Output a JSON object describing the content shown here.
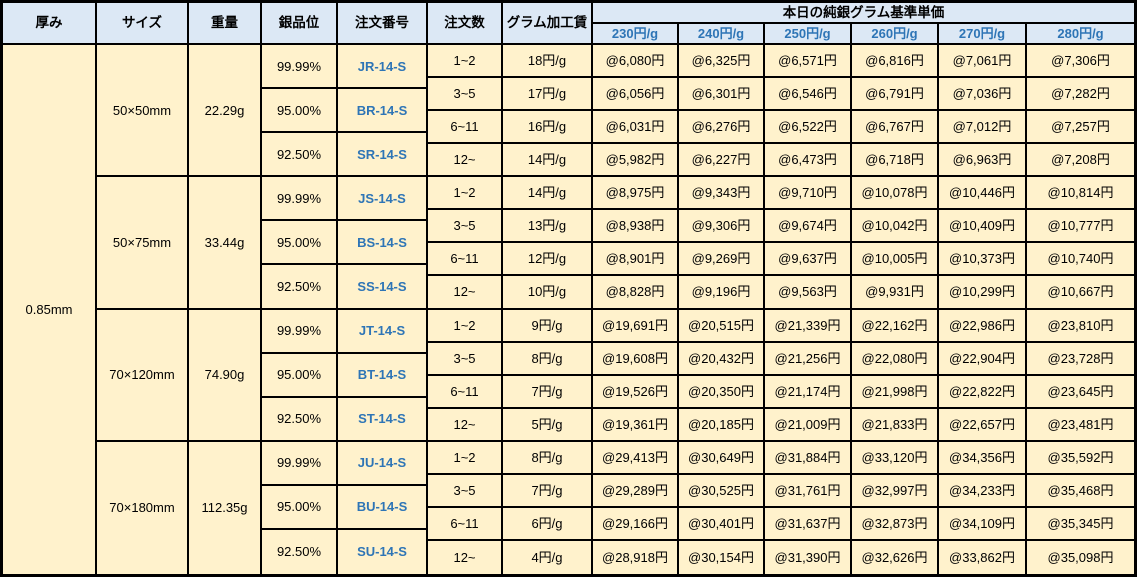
{
  "table": {
    "column_headers": {
      "thickness": "厚み",
      "size": "サイズ",
      "weight": "重量",
      "purity": "銀品位",
      "order_no": "注文番号",
      "qty": "注文数",
      "fee": "グラム加工賃"
    },
    "price_group_header": "本日の純銀グラム基準単価",
    "price_columns": [
      "230円/g",
      "240円/g",
      "250円/g",
      "260円/g",
      "270円/g",
      "280円/g"
    ],
    "thickness": "0.85mm",
    "sections": [
      {
        "size": "50×50mm",
        "weight": "22.29g",
        "purities": [
          {
            "purity": "99.99%",
            "order_no": "JR-14-S"
          },
          {
            "purity": "95.00%",
            "order_no": "BR-14-S"
          },
          {
            "purity": "92.50%",
            "order_no": "SR-14-S"
          }
        ],
        "rows": [
          {
            "qty": "1~2",
            "fee": "18円/g",
            "prices": [
              "@6,080円",
              "@6,325円",
              "@6,571円",
              "@6,816円",
              "@7,061円",
              "@7,306円"
            ]
          },
          {
            "qty": "3~5",
            "fee": "17円/g",
            "prices": [
              "@6,056円",
              "@6,301円",
              "@6,546円",
              "@6,791円",
              "@7,036円",
              "@7,282円"
            ]
          },
          {
            "qty": "6~11",
            "fee": "16円/g",
            "prices": [
              "@6,031円",
              "@6,276円",
              "@6,522円",
              "@6,767円",
              "@7,012円",
              "@7,257円"
            ]
          },
          {
            "qty": "12~",
            "fee": "14円/g",
            "prices": [
              "@5,982円",
              "@6,227円",
              "@6,473円",
              "@6,718円",
              "@6,963円",
              "@7,208円"
            ]
          }
        ]
      },
      {
        "size": "50×75mm",
        "weight": "33.44g",
        "purities": [
          {
            "purity": "99.99%",
            "order_no": "JS-14-S"
          },
          {
            "purity": "95.00%",
            "order_no": "BS-14-S"
          },
          {
            "purity": "92.50%",
            "order_no": "SS-14-S"
          }
        ],
        "rows": [
          {
            "qty": "1~2",
            "fee": "14円/g",
            "prices": [
              "@8,975円",
              "@9,343円",
              "@9,710円",
              "@10,078円",
              "@10,446円",
              "@10,814円"
            ]
          },
          {
            "qty": "3~5",
            "fee": "13円/g",
            "prices": [
              "@8,938円",
              "@9,306円",
              "@9,674円",
              "@10,042円",
              "@10,409円",
              "@10,777円"
            ]
          },
          {
            "qty": "6~11",
            "fee": "12円/g",
            "prices": [
              "@8,901円",
              "@9,269円",
              "@9,637円",
              "@10,005円",
              "@10,373円",
              "@10,740円"
            ]
          },
          {
            "qty": "12~",
            "fee": "10円/g",
            "prices": [
              "@8,828円",
              "@9,196円",
              "@9,563円",
              "@9,931円",
              "@10,299円",
              "@10,667円"
            ]
          }
        ]
      },
      {
        "size": "70×120mm",
        "weight": "74.90g",
        "purities": [
          {
            "purity": "99.99%",
            "order_no": "JT-14-S"
          },
          {
            "purity": "95.00%",
            "order_no": "BT-14-S"
          },
          {
            "purity": "92.50%",
            "order_no": "ST-14-S"
          }
        ],
        "rows": [
          {
            "qty": "1~2",
            "fee": "9円/g",
            "prices": [
              "@19,691円",
              "@20,515円",
              "@21,339円",
              "@22,162円",
              "@22,986円",
              "@23,810円"
            ]
          },
          {
            "qty": "3~5",
            "fee": "8円/g",
            "prices": [
              "@19,608円",
              "@20,432円",
              "@21,256円",
              "@22,080円",
              "@22,904円",
              "@23,728円"
            ]
          },
          {
            "qty": "6~11",
            "fee": "7円/g",
            "prices": [
              "@19,526円",
              "@20,350円",
              "@21,174円",
              "@21,998円",
              "@22,822円",
              "@23,645円"
            ]
          },
          {
            "qty": "12~",
            "fee": "5円/g",
            "prices": [
              "@19,361円",
              "@20,185円",
              "@21,009円",
              "@21,833円",
              "@22,657円",
              "@23,481円"
            ]
          }
        ]
      },
      {
        "size": "70×180mm",
        "weight": "112.35g",
        "purities": [
          {
            "purity": "99.99%",
            "order_no": "JU-14-S"
          },
          {
            "purity": "95.00%",
            "order_no": "BU-14-S"
          },
          {
            "purity": "92.50%",
            "order_no": "SU-14-S"
          }
        ],
        "rows": [
          {
            "qty": "1~2",
            "fee": "8円/g",
            "prices": [
              "@29,413円",
              "@30,649円",
              "@31,884円",
              "@33,120円",
              "@34,356円",
              "@35,592円"
            ]
          },
          {
            "qty": "3~5",
            "fee": "7円/g",
            "prices": [
              "@29,289円",
              "@30,525円",
              "@31,761円",
              "@32,997円",
              "@34,233円",
              "@35,468円"
            ]
          },
          {
            "qty": "6~11",
            "fee": "6円/g",
            "prices": [
              "@29,166円",
              "@30,401円",
              "@31,637円",
              "@32,873円",
              "@34,109円",
              "@35,345円"
            ]
          },
          {
            "qty": "12~",
            "fee": "4円/g",
            "prices": [
              "@28,918円",
              "@30,154円",
              "@31,390円",
              "@32,626円",
              "@33,862円",
              "@35,098円"
            ]
          }
        ]
      }
    ]
  },
  "colors": {
    "header_bg": "#DCE8F5",
    "body_bg": "#FFF2CC",
    "accent_text": "#2E75B6",
    "border": "#000000",
    "text": "#000000"
  }
}
